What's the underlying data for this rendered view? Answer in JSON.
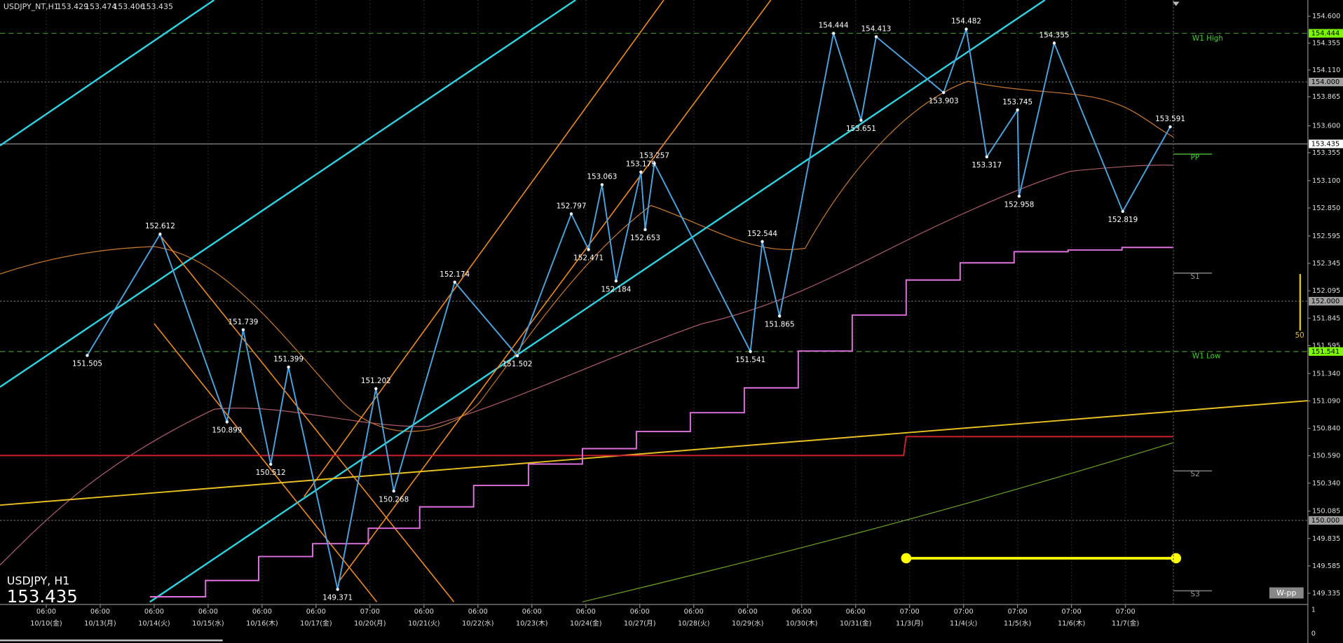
{
  "chart_data": {
    "type": "line",
    "title": "USDJPY_NT,H1",
    "ohlc": [
      153.429,
      153.474,
      153.406,
      153.435
    ],
    "symbol": "USDJPY, H1",
    "price": 153.435,
    "x": [
      0.76,
      2.11,
      3.35,
      3.65,
      4.16,
      4.49,
      5.4,
      6.11,
      6.44,
      7.57,
      8.73,
      9.73,
      10.05,
      10.3,
      10.56,
      11.02,
      11.1,
      11.27,
      13.05,
      13.27,
      13.59,
      14.59,
      15.1,
      15.38,
      16.63,
      17.05,
      17.43,
      18.0,
      18.03,
      18.68,
      19.95,
      20.83
    ],
    "series": [
      {
        "name": "USDJPY",
        "color": "#4aa3df",
        "values": [
          151.505,
          152.612,
          150.899,
          151.739,
          150.512,
          151.399,
          149.371,
          151.202,
          150.268,
          152.174,
          151.502,
          152.797,
          152.471,
          153.063,
          152.184,
          153.179,
          152.653,
          153.257,
          151.541,
          152.544,
          151.865,
          154.444,
          153.651,
          154.413,
          153.903,
          154.482,
          153.317,
          153.745,
          152.958,
          154.355,
          152.819,
          153.591
        ]
      }
    ],
    "xlim": [
      -0.857,
      23.381
    ],
    "ylim": [
      149.233,
      154.748
    ],
    "xticks": [
      {
        "value": 0,
        "label": "10/10(金)"
      },
      {
        "value": 1,
        "label": "10/13(月)"
      },
      {
        "value": 2,
        "label": "10/14(火)"
      },
      {
        "value": 3,
        "label": "10/15(水)"
      },
      {
        "value": 4,
        "label": "10/16(木)"
      },
      {
        "value": 5,
        "label": "10/17(金)"
      },
      {
        "value": 6,
        "label": "10/20(月)"
      },
      {
        "value": 7,
        "label": "10/21(火)"
      },
      {
        "value": 8,
        "label": "10/22(水)"
      },
      {
        "value": 9,
        "label": "10/23(木)"
      },
      {
        "value": 10,
        "label": "10/24(金)"
      },
      {
        "value": 11,
        "label": "10/27(月)"
      },
      {
        "value": 12,
        "label": "10/28(火)"
      },
      {
        "value": 13,
        "label": "10/29(水)"
      },
      {
        "value": 14,
        "label": "10/30(木)"
      },
      {
        "value": 15,
        "label": "10/31(金)"
      },
      {
        "value": 16,
        "label": "11/3(月)"
      },
      {
        "value": 17,
        "label": "11/4(火)"
      },
      {
        "value": 18,
        "label": "11/5(水)"
      },
      {
        "value": 19,
        "label": "11/6(木)"
      },
      {
        "value": 20,
        "label": "11/7(金)"
      }
    ],
    "xtick_times": [
      "06:00",
      "06:00",
      "06:00",
      "06:00",
      "06:00",
      "06:00",
      "07:00",
      "06:00",
      "06:00",
      "06:00",
      "06:00",
      "06:00",
      "06:00",
      "06:00",
      "06:00",
      "06:00",
      "07:00",
      "07:00",
      "07:00",
      "07:00",
      "07:00"
    ],
    "yticks": [
      {
        "value": 154.6,
        "label": "154.600"
      },
      154.355,
      {
        "value": 154.11,
        "label": "154.110"
      },
      153.865,
      {
        "value": 153.6,
        "label": "153.600"
      },
      153.355,
      {
        "value": 153.1,
        "label": "153.100"
      },
      {
        "value": 152.85,
        "label": "152.850"
      },
      152.595,
      152.345,
      152.095,
      151.845,
      151.595,
      {
        "value": 151.34,
        "label": "151.340"
      },
      {
        "value": 151.09,
        "label": "151.090"
      },
      {
        "value": 150.84,
        "label": "150.840"
      },
      {
        "value": 150.59,
        "label": "150.590"
      },
      {
        "value": 150.34,
        "label": "150.340"
      },
      150.085,
      149.835,
      149.585,
      149.335
    ],
    "levels": [
      {
        "value": 154.444,
        "line": "dashed",
        "color": "#3f8f2a",
        "tag_color": "#7cfc00"
      },
      {
        "value": 154,
        "label": "154.000",
        "line": "dotted",
        "color": "#666666",
        "tag_color": "#a0a0a0"
      },
      {
        "value": 153.435,
        "line": "solid",
        "color": "#8a8a8a",
        "tag_color": "#ffffff"
      },
      {
        "value": 152,
        "label": "152.000",
        "line": "dotted",
        "color": "#666666",
        "tag_color": "#a0a0a0"
      },
      {
        "value": 151.541,
        "line": "dashed",
        "color": "#3f8f2a",
        "tag_color": "#7cfc00"
      },
      {
        "value": 150,
        "label": "150.000",
        "line": "dotted",
        "color": "#666666",
        "tag_color": "#a0a0a0"
      }
    ],
    "pivot_labels": {
      "w1_high": "W1 High",
      "w1_low": "W1 Low",
      "pp": "PP",
      "s1": "S1",
      "s2": "S2",
      "s3": "S3"
    },
    "indicator_level": 50,
    "button": "W-pp",
    "sub_yticks": [
      1,
      0
    ],
    "grid": true
  }
}
